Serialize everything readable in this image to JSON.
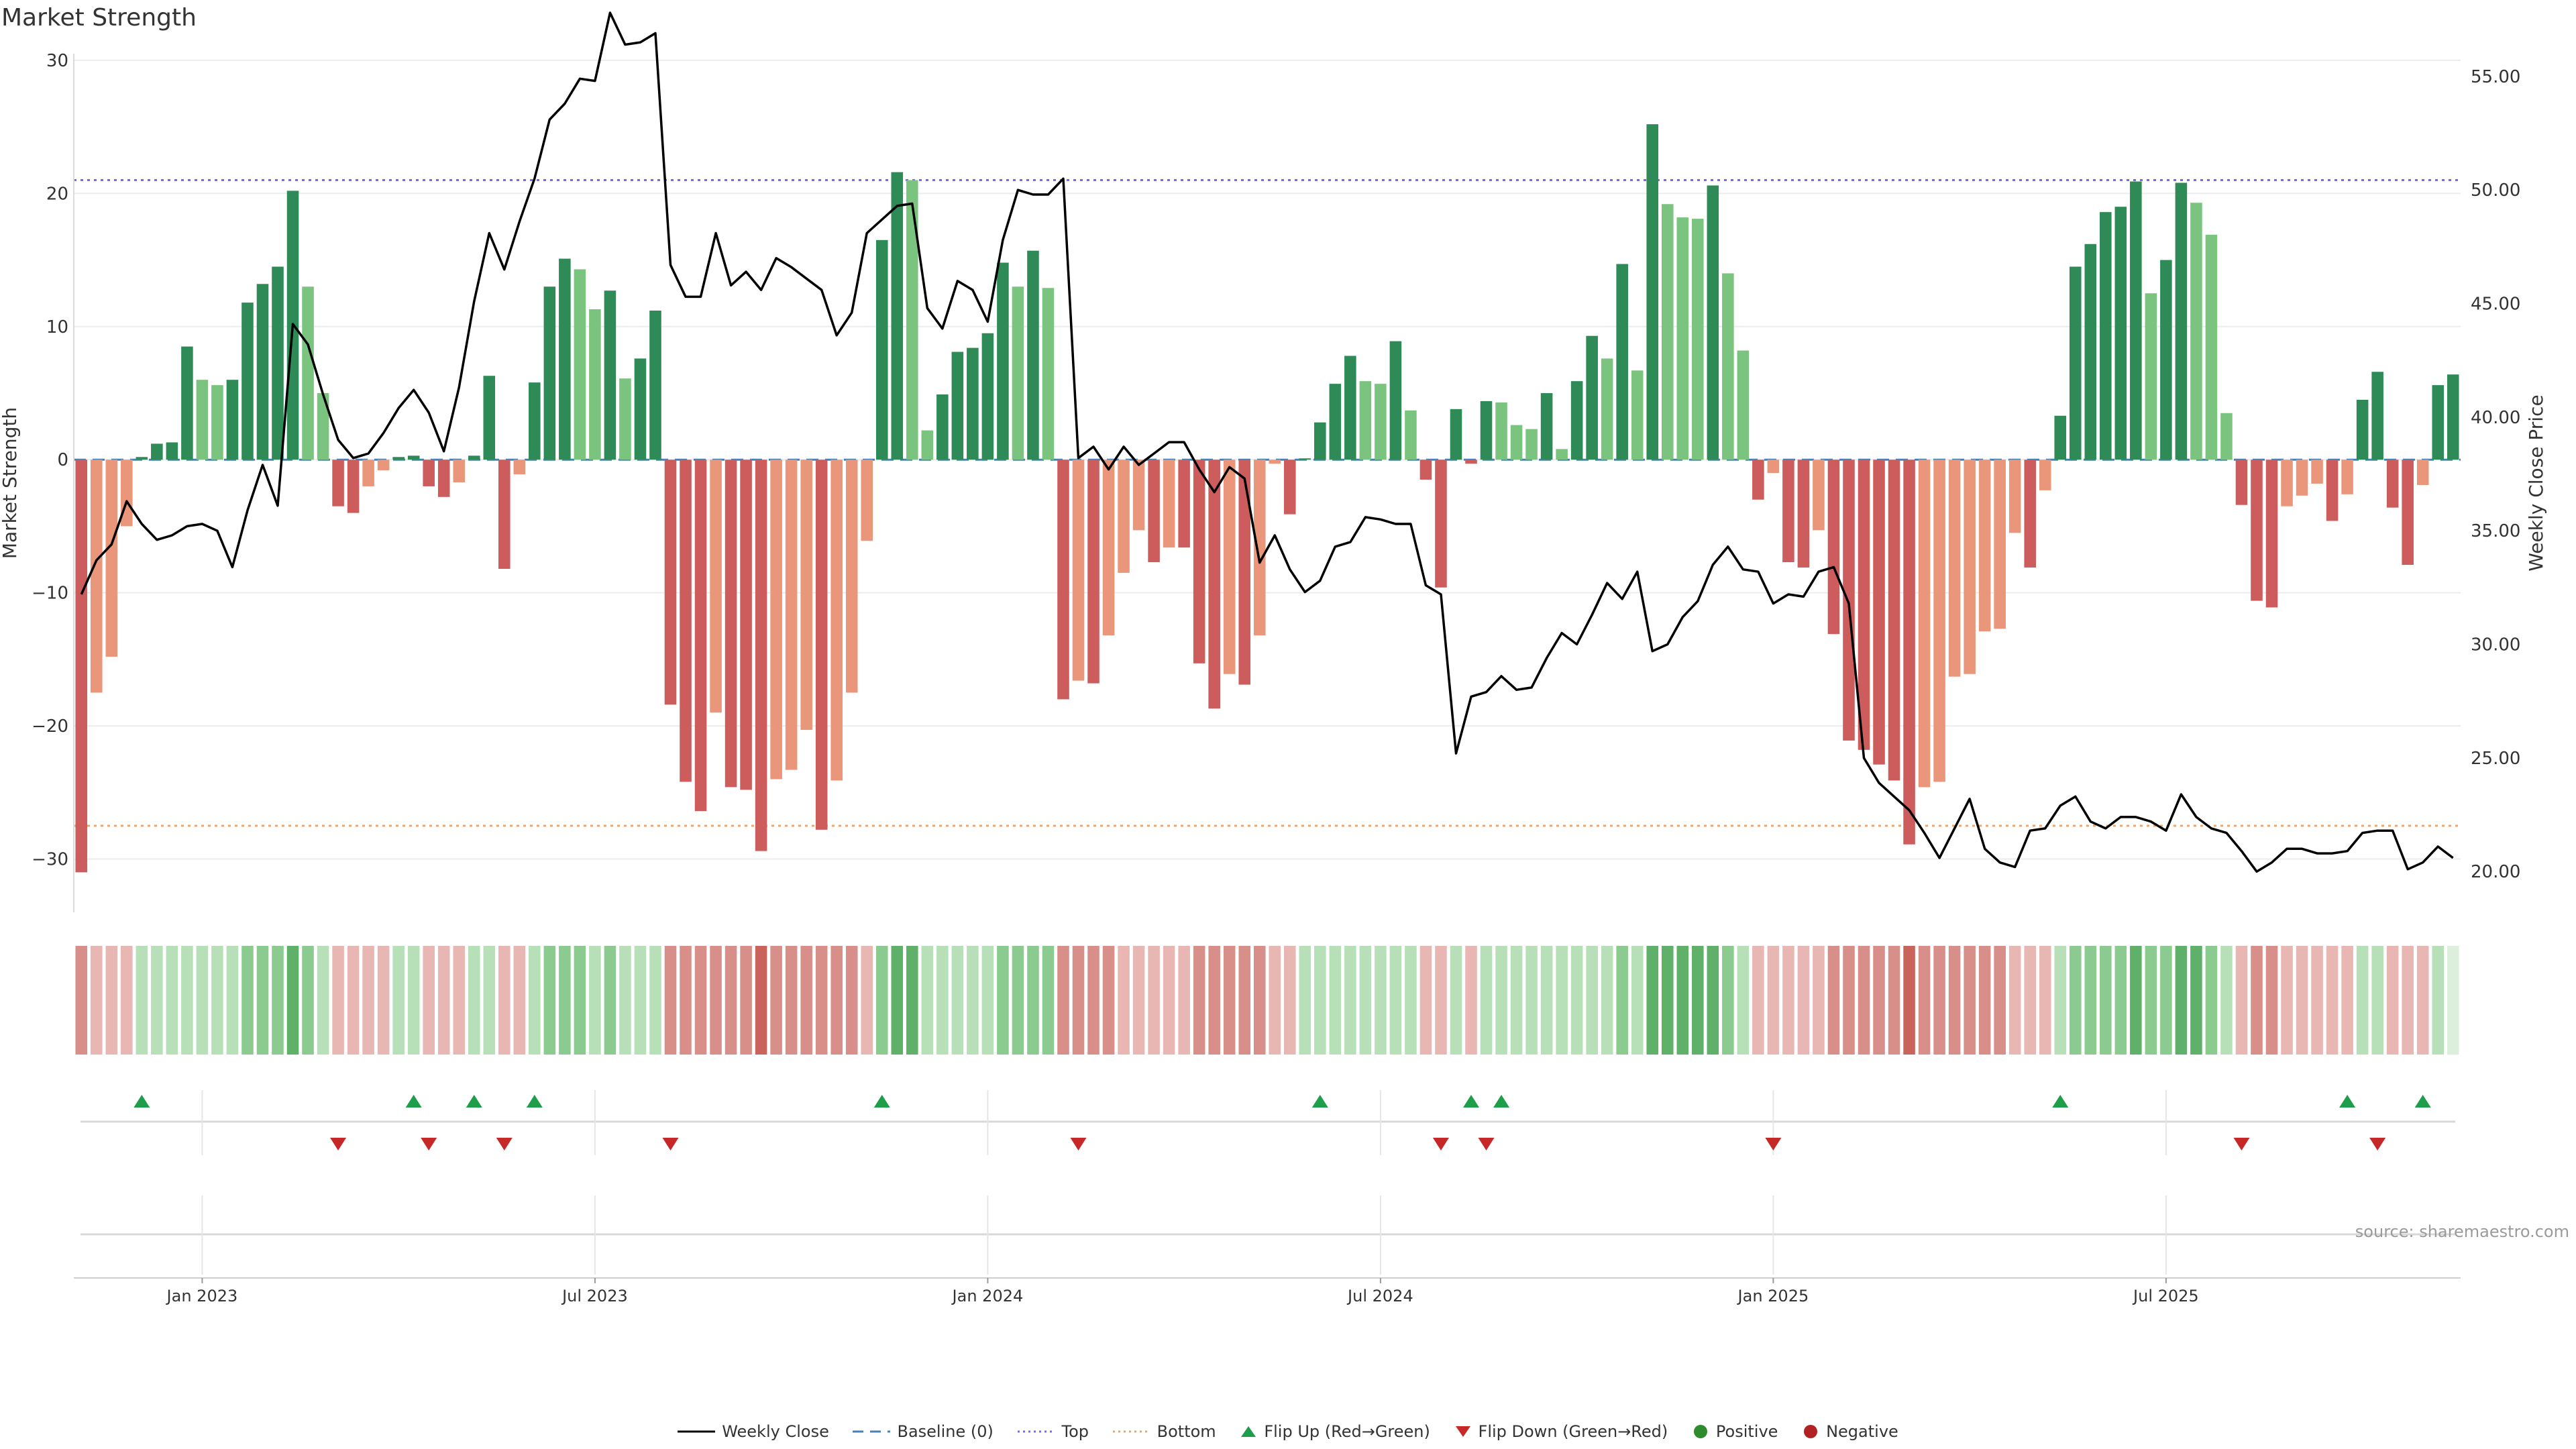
{
  "title": "Market Strength",
  "source": "source: sharemaestro.com",
  "legend": {
    "weekly_close": "Weekly Close",
    "baseline": "Baseline (0)",
    "top": "Top",
    "bottom": "Bottom",
    "flip_up": "Flip Up (Red→Green)",
    "flip_down": "Flip Down (Green→Red)",
    "positive": "Positive",
    "negative": "Negative"
  },
  "colors": {
    "green_dark": "#2e8b57",
    "green_light": "#7bc47f",
    "red_dark": "#cd5c5c",
    "red_light": "#e9967a",
    "top_line": "#7b68ee",
    "bottom_line": "#f4a460",
    "baseline": "#4682b4",
    "flip_up": "#1e9e4a",
    "flip_down": "#c62828",
    "close_line": "#000000"
  },
  "chart_data": {
    "type": "bar",
    "title": "Market Strength",
    "ylabel": "Market Strength",
    "y2label": "Weekly Close Price",
    "ylim": [
      -33.5,
      30.5
    ],
    "y2lim": [
      18.5,
      56.0
    ],
    "yticks": [
      "30",
      "20",
      "10",
      "0",
      "−10",
      "−20",
      "−30"
    ],
    "yticks_values": [
      30,
      20,
      10,
      0,
      -10,
      -20,
      -30
    ],
    "y2ticks": [
      "55.00",
      "50.00",
      "45.00",
      "40.00",
      "35.00",
      "30.00",
      "25.00",
      "20.00"
    ],
    "y2ticks_values": [
      55,
      50,
      45,
      40,
      35,
      30,
      25,
      20
    ],
    "xticks": [
      "Jan 2023",
      "Jul 2023",
      "Jan 2024",
      "Jul 2024",
      "Jan 2025",
      "Jul 2025"
    ],
    "xticks_week_index": [
      8.5,
      34.5,
      60.5,
      86.5,
      112.5,
      138.5
    ],
    "top_level": 21,
    "bottom_level": -27.5,
    "baseline": 0,
    "series": [
      {
        "name": "Market Strength",
        "values": [
          -31,
          -17.5,
          -14.8,
          -5,
          0.2,
          1.2,
          1.3,
          8.5,
          6,
          5.6,
          6,
          11.8,
          13.2,
          14.5,
          20.2,
          13,
          5,
          -3.5,
          -4,
          -2,
          -0.8,
          0.2,
          0.3,
          -2,
          -2.8,
          -1.7,
          0.3,
          6.3,
          -8.2,
          -1.1,
          5.8,
          13,
          15.1,
          14.3,
          11.3,
          12.7,
          6.1,
          7.6,
          11.2,
          -18.4,
          -24.2,
          -26.4,
          -19,
          -24.6,
          -24.8,
          -29.4,
          -24,
          -23.3,
          -20.3,
          -27.8,
          -24.1,
          -17.5,
          -6.1,
          16.5,
          21.6,
          21,
          2.2,
          4.9,
          8.1,
          8.4,
          9.5,
          14.8,
          13,
          15.7,
          12.9,
          -18,
          -16.6,
          -16.8,
          -13.2,
          -8.5,
          -5.3,
          -7.7,
          -6.6,
          -6.6,
          -15.3,
          -18.7,
          -16.1,
          -16.9,
          -13.2,
          -0.3,
          -4.1,
          0.1,
          2.8,
          5.7,
          7.8,
          5.9,
          5.7,
          8.9,
          3.7,
          -1.5,
          -9.6,
          3.8,
          -0.3,
          4.4,
          4.3,
          2.6,
          2.3,
          5,
          0.8,
          5.9,
          9.3,
          7.6,
          14.7,
          6.7,
          25.2,
          19.2,
          18.2,
          18.1,
          20.6,
          14,
          8.2,
          -3,
          -1,
          -7.7,
          -8.1,
          -5.3,
          -13.1,
          -21.1,
          -21.8,
          -22.9,
          -24.1,
          -28.9,
          -24.6,
          -24.2,
          -16.3,
          -16.1,
          -12.9,
          -12.7,
          -5.5,
          -8.1,
          -2.3,
          3.3,
          14.5,
          16.2,
          18.6,
          19,
          20.9,
          12.5,
          15,
          20.8,
          19.3,
          16.9,
          3.5,
          -3.4,
          -10.6,
          -11.1,
          -3.5,
          -2.7,
          -1.8,
          -4.6,
          -2.6,
          4.5,
          6.6,
          -3.6,
          -7.9,
          -1.9,
          5.6,
          6.4
        ]
      },
      {
        "name": "Weekly Close",
        "values": [
          32.2,
          33.7,
          34.4,
          36.3,
          35.3,
          34.6,
          34.8,
          35.2,
          35.3,
          35,
          33.4,
          35.9,
          37.9,
          36.1,
          44.1,
          43.2,
          41,
          39,
          38.2,
          38.4,
          39.3,
          40.4,
          41.2,
          40.2,
          38.5,
          41.3,
          45.1,
          48.1,
          46.5,
          48.6,
          50.5,
          53.1,
          53.8,
          54.9,
          54.8,
          57.8,
          56.4,
          56.5,
          56.9,
          46.7,
          45.3,
          45.3,
          48.1,
          45.8,
          46.4,
          45.6,
          47,
          46.6,
          46.1,
          45.6,
          43.6,
          44.6,
          48.1,
          48.7,
          49.3,
          49.4,
          44.8,
          43.9,
          46,
          45.6,
          44.2,
          47.8,
          50,
          49.8,
          49.8,
          50.5,
          38.2,
          38.7,
          37.7,
          38.7,
          37.9,
          38.4,
          38.9,
          38.9,
          37.7,
          36.7,
          37.8,
          37.3,
          33.6,
          34.8,
          33.3,
          32.3,
          32.8,
          34.3,
          34.5,
          35.6,
          35.5,
          35.3,
          35.3,
          32.6,
          32.2,
          25.2,
          27.7,
          27.9,
          28.6,
          28,
          28.1,
          29.4,
          30.5,
          30,
          31.3,
          32.7,
          32,
          33.2,
          29.7,
          30,
          31.2,
          31.9,
          33.5,
          34.3,
          33.3,
          33.2,
          31.8,
          32.2,
          32.1,
          33.2,
          33.4,
          31.8,
          25,
          23.9,
          23.3,
          22.7,
          21.7,
          20.6,
          21.9,
          23.2,
          21,
          20.4,
          20.2,
          21.8,
          21.9,
          22.9,
          23.3,
          22.2,
          21.9,
          22.4,
          22.4,
          22.2,
          21.8,
          23.4,
          22.4,
          21.9,
          21.7,
          20.9,
          20,
          20.4,
          21,
          21,
          20.8,
          20.8,
          20.9,
          21.7,
          21.8,
          21.8,
          20.1,
          20.4,
          21.1,
          20.6
        ]
      }
    ],
    "strip_shades": [
      2,
      1,
      1,
      1,
      1,
      1,
      1,
      1,
      1,
      1,
      1,
      2,
      2,
      2,
      3,
      2,
      1,
      1,
      1,
      1,
      1,
      1,
      1,
      1,
      1,
      1,
      1,
      1,
      1,
      1,
      1,
      2,
      2,
      2,
      1,
      2,
      1,
      1,
      1,
      2,
      2,
      2,
      2,
      2,
      2,
      3,
      2,
      2,
      2,
      2,
      2,
      2,
      1,
      2,
      3,
      3,
      1,
      1,
      1,
      1,
      1,
      2,
      2,
      2,
      2,
      2,
      2,
      2,
      2,
      1,
      1,
      1,
      1,
      1,
      2,
      2,
      2,
      2,
      2,
      1,
      1,
      1,
      1,
      1,
      1,
      1,
      1,
      1,
      1,
      1,
      1,
      1,
      1,
      1,
      1,
      1,
      1,
      1,
      1,
      1,
      1,
      1,
      2,
      1,
      3,
      3,
      3,
      3,
      3,
      2,
      1,
      1,
      1,
      1,
      1,
      1,
      2,
      2,
      2,
      2,
      2,
      3,
      2,
      2,
      2,
      2,
      2,
      2,
      1,
      1,
      1,
      1,
      2,
      2,
      2,
      2,
      3,
      2,
      2,
      3,
      3,
      2,
      1,
      1,
      2,
      2,
      1,
      1,
      1,
      1,
      1,
      1,
      1,
      1,
      1,
      1,
      1
    ],
    "flip_up_weeks": [
      4,
      22,
      26,
      30,
      53,
      82,
      92,
      94,
      131,
      150,
      155
    ],
    "flip_down_weeks": [
      17,
      23,
      28,
      39,
      66,
      90,
      93,
      112,
      143,
      152
    ]
  }
}
